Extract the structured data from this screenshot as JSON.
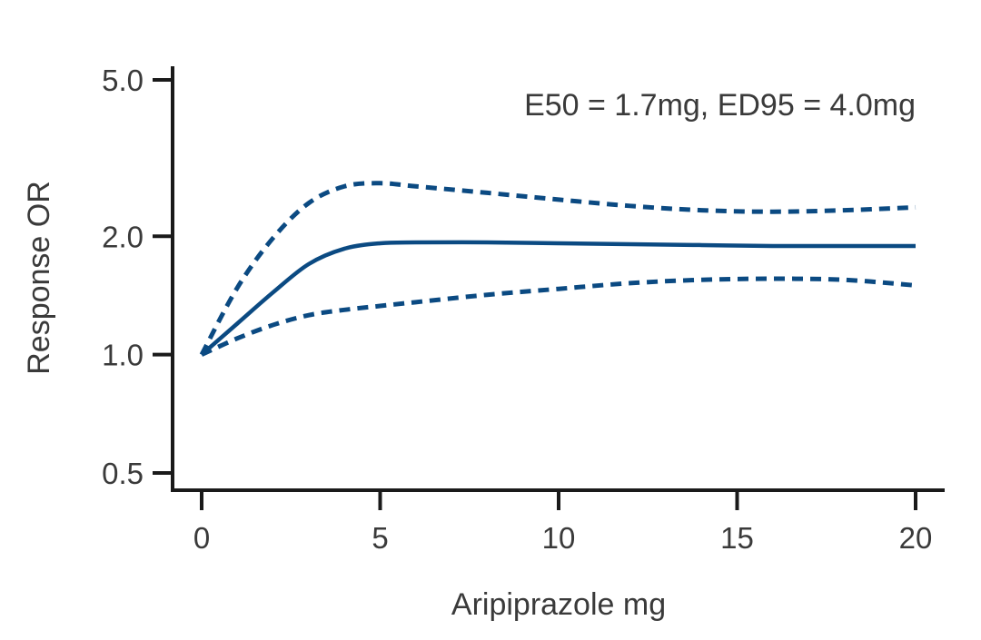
{
  "chart_data": {
    "type": "line",
    "title": "",
    "xlabel": "Aripiprazole mg",
    "ylabel": "Response OR",
    "annotation": "E50 = 1.7mg, ED95 = 4.0mg",
    "xlim": [
      0,
      20
    ],
    "ylim": [
      0.5,
      5.0
    ],
    "y_scale": "log",
    "x_ticks": [
      0,
      5,
      10,
      15,
      20
    ],
    "x_tick_labels": [
      "0",
      "5",
      "10",
      "15",
      "20"
    ],
    "y_ticks": [
      0.5,
      1.0,
      2.0,
      5.0
    ],
    "y_tick_labels": [
      "0.5",
      "1.0",
      "2.0",
      "5.0"
    ],
    "grid": false,
    "colors": {
      "line": "#0b4a82",
      "axis": "#1a1a1a"
    },
    "x": [
      0,
      1,
      2,
      3,
      4,
      5,
      6,
      8,
      10,
      12,
      14,
      16,
      18,
      20
    ],
    "series": [
      {
        "style": "solid",
        "values": [
          1.0,
          1.2,
          1.44,
          1.7,
          1.86,
          1.92,
          1.93,
          1.93,
          1.92,
          1.91,
          1.9,
          1.89,
          1.89,
          1.89
        ]
      },
      {
        "style": "dashed",
        "values": [
          1.0,
          1.48,
          1.98,
          2.43,
          2.68,
          2.73,
          2.68,
          2.58,
          2.48,
          2.39,
          2.33,
          2.31,
          2.33,
          2.37
        ]
      },
      {
        "style": "dashed",
        "values": [
          1.0,
          1.1,
          1.19,
          1.26,
          1.3,
          1.33,
          1.36,
          1.42,
          1.47,
          1.52,
          1.55,
          1.56,
          1.55,
          1.5
        ]
      }
    ]
  }
}
